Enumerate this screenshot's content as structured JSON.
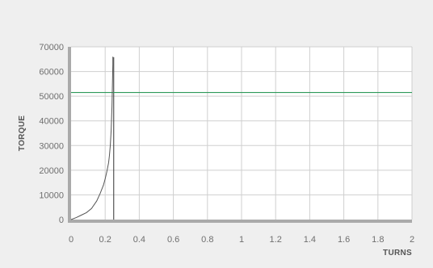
{
  "chart_data": {
    "type": "line",
    "title": "",
    "xlabel": "TURNS",
    "ylabel": "TORQUE",
    "xlim": [
      0,
      2
    ],
    "ylim": [
      0,
      70000
    ],
    "x_ticks": [
      "0",
      "0.2",
      "0.4",
      "0.6",
      "0.8",
      "1",
      "1.2",
      "1.4",
      "1.6",
      "1.8",
      "2"
    ],
    "y_ticks": [
      "0",
      "10000",
      "20000",
      "30000",
      "40000",
      "50000",
      "60000",
      "70000"
    ],
    "grid": true,
    "series": [
      {
        "color": "#555555",
        "x": [
          0,
          0.03,
          0.06,
          0.09,
          0.12,
          0.15,
          0.17,
          0.19,
          0.2,
          0.21,
          0.22,
          0.225,
          0.23,
          0.235,
          0.24,
          0.245,
          0.245
        ],
        "y": [
          0,
          800,
          1800,
          2800,
          4500,
          7500,
          10500,
          14000,
          16500,
          19500,
          23000,
          26000,
          30000,
          36000,
          46000,
          63000,
          66000
        ]
      }
    ],
    "reference_lines": [
      {
        "orientation": "vertical",
        "x": 0.25,
        "color": "#444444"
      },
      {
        "orientation": "horizontal",
        "y": 51500,
        "color": "#2e9a5a"
      }
    ],
    "colors": {
      "background": "#efefef",
      "plot_background": "#ffffff",
      "grid": "#cfcfcf",
      "axis_bar": "#aaaaaa"
    }
  }
}
